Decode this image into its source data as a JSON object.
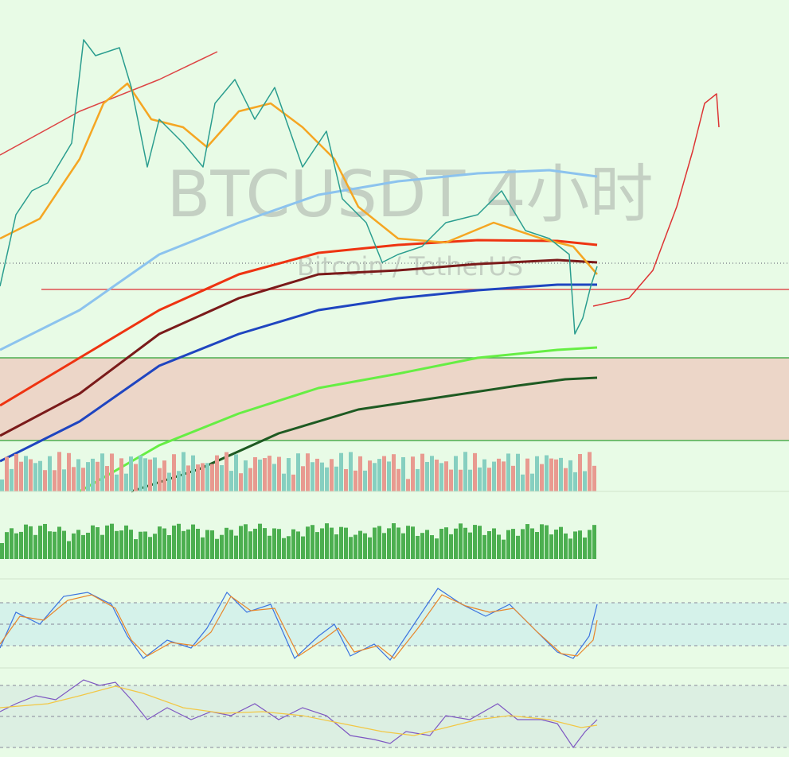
{
  "watermark": {
    "title": "BTCUSDT 4小时",
    "subtitle": "Bitcoin / TetherUS"
  }
}
